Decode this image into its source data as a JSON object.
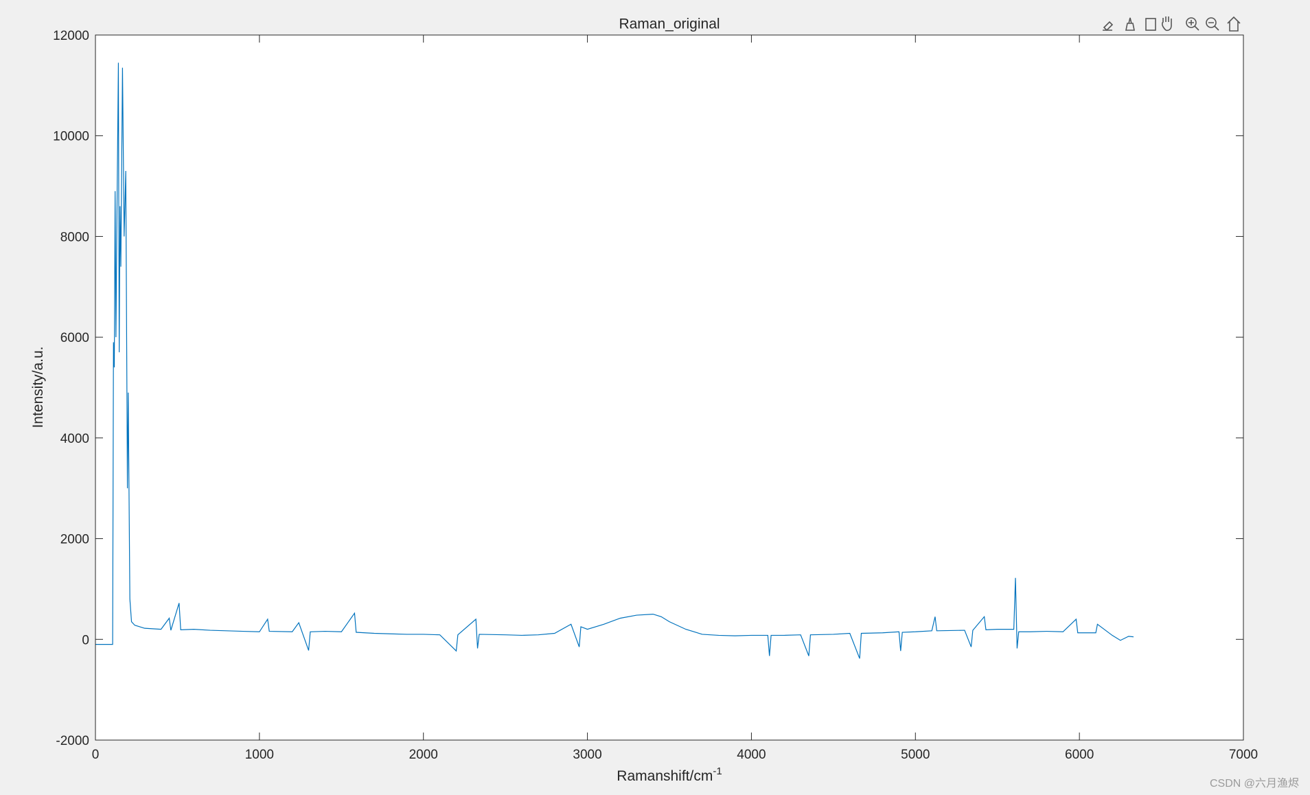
{
  "chart_data": {
    "type": "line",
    "title": "Raman_original",
    "xlabel": "Ramanshift/cm",
    "xlabel_superscript": "-1",
    "ylabel": "Intensity/a.u.",
    "color": "#0072bd",
    "x": [
      0,
      105,
      110,
      115,
      120,
      125,
      130,
      140,
      145,
      150,
      155,
      165,
      175,
      185,
      195,
      200,
      210,
      220,
      240,
      300,
      400,
      450,
      460,
      510,
      520,
      600,
      700,
      800,
      900,
      1000,
      1050,
      1060,
      1200,
      1240,
      1300,
      1310,
      1400,
      1500,
      1580,
      1590,
      1700,
      1800,
      1900,
      2000,
      2100,
      2200,
      2210,
      2320,
      2330,
      2340,
      2500,
      2600,
      2700,
      2800,
      2900,
      2950,
      2960,
      3000,
      3100,
      3200,
      3300,
      3400,
      3450,
      3500,
      3600,
      3700,
      3800,
      3900,
      4000,
      4100,
      4110,
      4120,
      4200,
      4300,
      4350,
      4360,
      4500,
      4600,
      4660,
      4670,
      4800,
      4900,
      4910,
      4920,
      5000,
      5100,
      5120,
      5130,
      5300,
      5340,
      5350,
      5420,
      5430,
      5500,
      5600,
      5610,
      5620,
      5630,
      5700,
      5800,
      5900,
      5980,
      5990,
      6100,
      6110,
      6200,
      6250,
      6300,
      6330
    ],
    "values": [
      -100,
      -100,
      5900,
      5400,
      8900,
      6000,
      8000,
      11450,
      5700,
      8600,
      7400,
      11350,
      8000,
      9300,
      3000,
      4900,
      800,
      350,
      280,
      220,
      200,
      420,
      180,
      720,
      190,
      200,
      180,
      170,
      160,
      150,
      400,
      160,
      150,
      330,
      -220,
      150,
      160,
      150,
      520,
      140,
      120,
      110,
      100,
      100,
      90,
      -230,
      90,
      400,
      -180,
      100,
      90,
      80,
      90,
      120,
      300,
      -150,
      250,
      200,
      300,
      420,
      480,
      500,
      450,
      350,
      200,
      100,
      80,
      70,
      80,
      80,
      -330,
      80,
      80,
      90,
      -330,
      90,
      100,
      120,
      -380,
      120,
      130,
      150,
      -230,
      140,
      150,
      170,
      450,
      170,
      180,
      -150,
      180,
      450,
      190,
      200,
      200,
      1220,
      -180,
      150,
      150,
      160,
      150,
      400,
      130,
      130,
      300,
      80,
      -20,
      60,
      50
    ],
    "xlim": [
      0,
      7000
    ],
    "xticks": [
      0,
      1000,
      2000,
      3000,
      4000,
      5000,
      6000,
      7000
    ],
    "ylim": [
      -2000,
      12000
    ],
    "yticks": [
      -2000,
      0,
      2000,
      4000,
      6000,
      8000,
      10000,
      12000
    ]
  },
  "watermark": "CSDN @六月渔烬"
}
